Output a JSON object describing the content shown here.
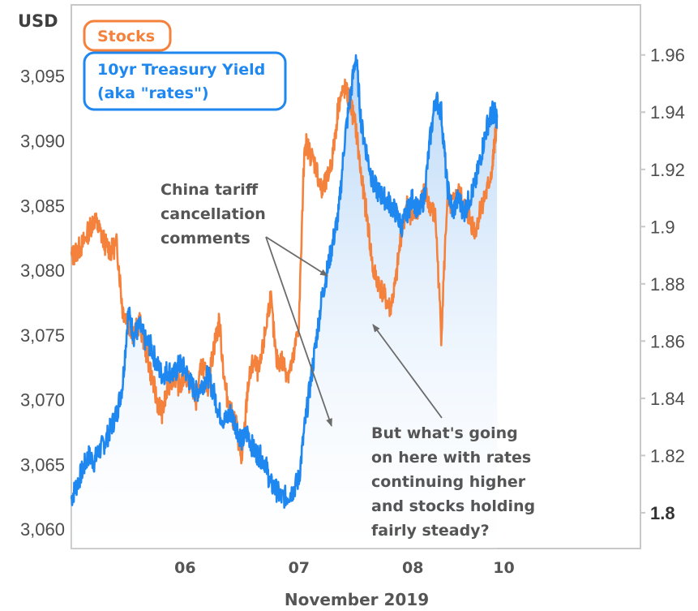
{
  "chart_data": {
    "type": "line",
    "xlabel": "November 2019",
    "unit_label": "USD",
    "x_ticks": [
      "06",
      "07",
      "08",
      "10"
    ],
    "xlim": [
      0,
      5.0
    ],
    "x_tick_positions": [
      1.0,
      2.0,
      3.0,
      3.8
    ],
    "grid": false,
    "legend_placement": "top-left",
    "y_left": {
      "ylim": [
        3058.5,
        3100.5
      ],
      "ticks": [
        "3,060",
        "3,065",
        "3,070",
        "3,075",
        "3,080",
        "3,085",
        "3,090",
        "3,095"
      ],
      "tick_values": [
        3060,
        3065,
        3070,
        3075,
        3080,
        3085,
        3090,
        3095
      ]
    },
    "y_right": {
      "ylim": [
        1.7875,
        1.9775
      ],
      "ticks": [
        "1.8",
        "1.82",
        "1.84",
        "1.86",
        "1.88",
        "1.9",
        "1.92",
        "1.94",
        "1.96"
      ],
      "tick_values": [
        1.8,
        1.82,
        1.84,
        1.86,
        1.88,
        1.9,
        1.92,
        1.94,
        1.96
      ]
    },
    "series": [
      {
        "name": "Stocks",
        "axis": "left",
        "color": "#f4823c",
        "x": [
          0.0,
          0.05,
          0.1,
          0.15,
          0.2,
          0.25,
          0.3,
          0.35,
          0.4,
          0.45,
          0.5,
          0.55,
          0.6,
          0.65,
          0.7,
          0.75,
          0.8,
          0.85,
          0.9,
          0.95,
          1.0,
          1.05,
          1.1,
          1.15,
          1.2,
          1.25,
          1.3,
          1.35,
          1.4,
          1.45,
          1.5,
          1.55,
          1.6,
          1.65,
          1.7,
          1.75,
          1.8,
          1.85,
          1.9,
          1.95,
          2.0,
          2.05,
          2.1,
          2.15,
          2.2,
          2.25,
          2.3,
          2.35,
          2.4,
          2.45,
          2.5,
          2.55,
          2.6,
          2.65,
          2.7,
          2.75,
          2.8,
          2.85,
          2.9,
          2.95,
          3.0,
          3.05,
          3.1,
          3.15,
          3.2,
          3.25,
          3.3,
          3.35,
          3.4,
          3.45,
          3.5,
          3.55,
          3.6,
          3.65,
          3.7,
          3.72,
          3.74
        ],
        "values": [
          3081,
          3081.5,
          3082,
          3083,
          3084,
          3083,
          3082,
          3081.5,
          3082,
          3077,
          3076,
          3075,
          3076,
          3074,
          3072,
          3070,
          3069,
          3071,
          3072,
          3071,
          3072,
          3071,
          3070,
          3073,
          3071,
          3074,
          3076,
          3071,
          3069,
          3068,
          3065,
          3071,
          3073,
          3072,
          3075,
          3078,
          3073,
          3073,
          3072,
          3073,
          3076,
          3090,
          3089,
          3088,
          3086,
          3087,
          3089,
          3093,
          3094,
          3093,
          3091,
          3087,
          3084,
          3080,
          3079,
          3078,
          3077,
          3079,
          3083,
          3085,
          3084,
          3085,
          3086,
          3085,
          3084,
          3075,
          3085,
          3085,
          3086,
          3085,
          3084,
          3083,
          3085,
          3086,
          3088,
          3090,
          3091
        ]
      },
      {
        "name": "10yr Treasury Yield (aka \"rates\")",
        "axis": "right",
        "color": "#1f87f0",
        "x": [
          0.0,
          0.05,
          0.1,
          0.15,
          0.2,
          0.25,
          0.3,
          0.35,
          0.4,
          0.45,
          0.5,
          0.55,
          0.6,
          0.65,
          0.7,
          0.75,
          0.8,
          0.85,
          0.9,
          0.95,
          1.0,
          1.05,
          1.1,
          1.15,
          1.2,
          1.25,
          1.3,
          1.35,
          1.4,
          1.45,
          1.5,
          1.55,
          1.6,
          1.65,
          1.7,
          1.75,
          1.8,
          1.85,
          1.9,
          1.95,
          2.0,
          2.05,
          2.1,
          2.15,
          2.2,
          2.25,
          2.3,
          2.35,
          2.4,
          2.45,
          2.5,
          2.55,
          2.6,
          2.65,
          2.7,
          2.75,
          2.8,
          2.85,
          2.9,
          2.95,
          3.0,
          3.05,
          3.1,
          3.15,
          3.2,
          3.25,
          3.3,
          3.35,
          3.4,
          3.45,
          3.5,
          3.55,
          3.6,
          3.65,
          3.7,
          3.72,
          3.74
        ],
        "values": [
          1.805,
          1.81,
          1.815,
          1.82,
          1.818,
          1.822,
          1.825,
          1.83,
          1.835,
          1.845,
          1.87,
          1.862,
          1.865,
          1.86,
          1.858,
          1.852,
          1.848,
          1.85,
          1.848,
          1.852,
          1.85,
          1.845,
          1.842,
          1.845,
          1.848,
          1.842,
          1.835,
          1.832,
          1.835,
          1.83,
          1.825,
          1.828,
          1.822,
          1.82,
          1.818,
          1.81,
          1.808,
          1.805,
          1.806,
          1.808,
          1.812,
          1.83,
          1.845,
          1.86,
          1.875,
          1.885,
          1.895,
          1.905,
          1.93,
          1.945,
          1.96,
          1.935,
          1.925,
          1.915,
          1.912,
          1.91,
          1.908,
          1.905,
          1.9,
          1.905,
          1.91,
          1.905,
          1.91,
          1.93,
          1.945,
          1.94,
          1.915,
          1.905,
          1.91,
          1.905,
          1.91,
          1.915,
          1.925,
          1.935,
          1.94,
          1.94,
          1.938
        ]
      }
    ],
    "annotations": [
      {
        "lines": [
          "China tariff",
          "cancellation",
          "comments"
        ]
      },
      {
        "lines": [
          "But what's going",
          "on here with rates",
          "continuing higher",
          "and stocks holding",
          "fairly steady?"
        ]
      }
    ]
  },
  "legend": {
    "stocks_label": "Stocks",
    "rates_line1": "10yr Treasury Yield",
    "rates_line2": "(aka \"rates\")"
  }
}
